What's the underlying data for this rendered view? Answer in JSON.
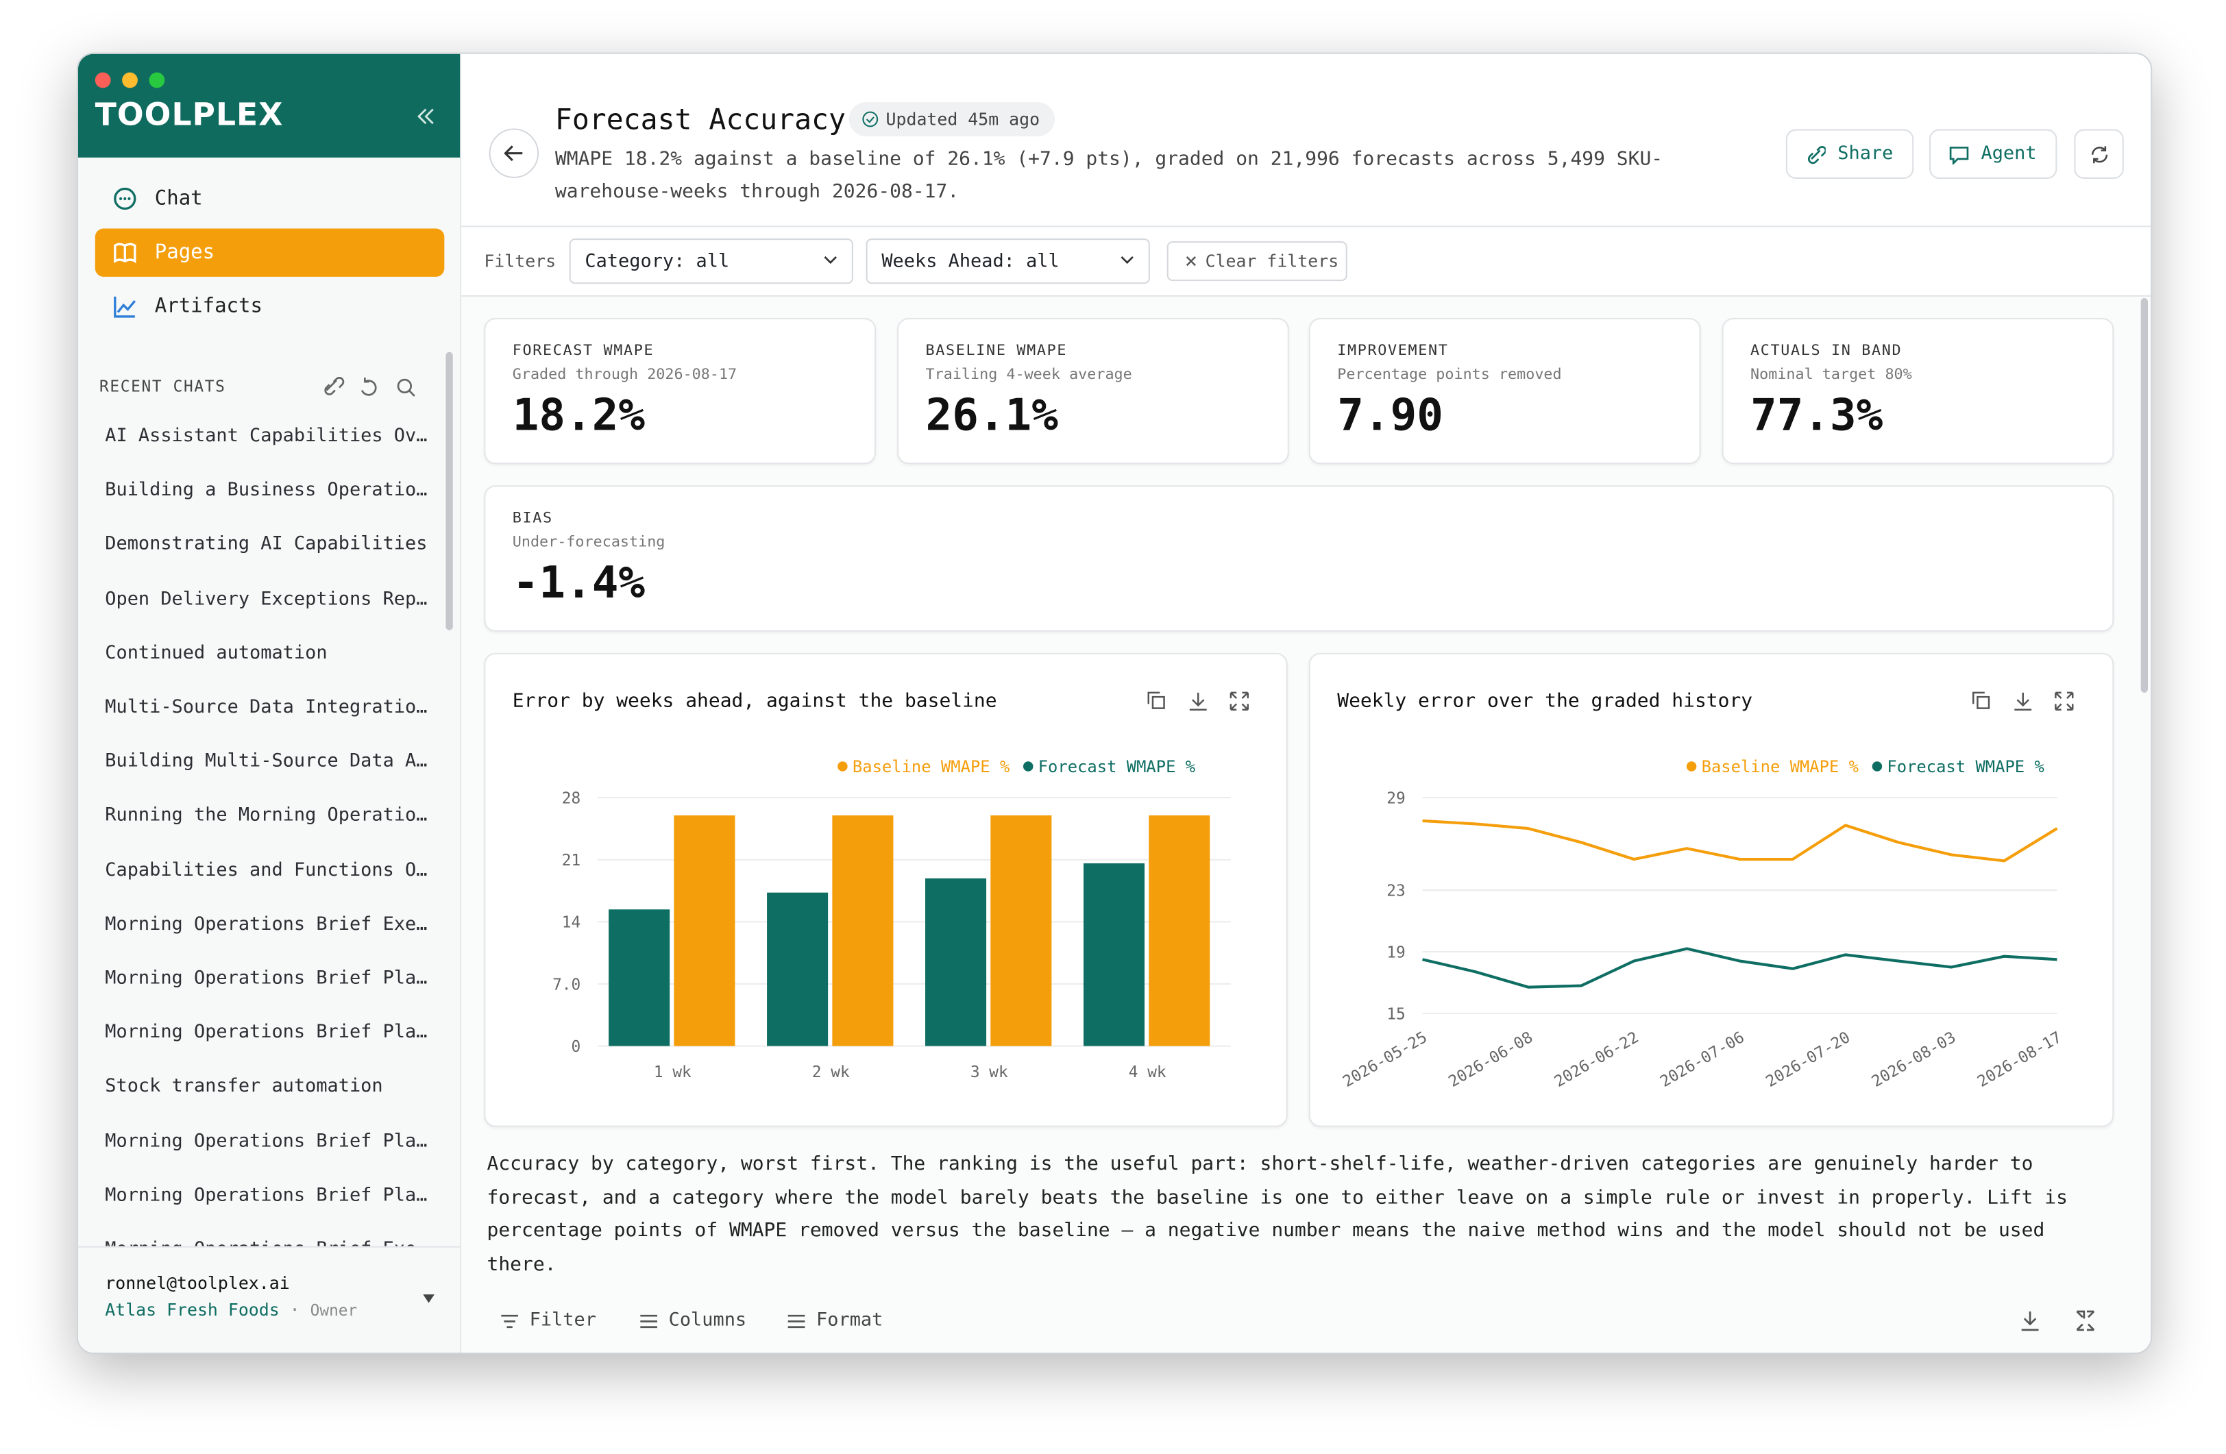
{
  "app": {
    "brand": "TOOLPLEX"
  },
  "nav": [
    {
      "label": "Chat"
    },
    {
      "label": "Pages"
    },
    {
      "label": "Artifacts"
    }
  ],
  "recent": {
    "heading": "RECENT CHATS",
    "items": [
      "AI Assistant Capabilities Ov…",
      "Building a Business Operatio…",
      "Demonstrating AI Capabilities",
      "Open Delivery Exceptions Rep…",
      "Continued automation",
      "Multi-Source Data Integratio…",
      "Building Multi-Source Data A…",
      "Running the Morning Operatio…",
      "Capabilities and Functions O…",
      "Morning Operations Brief Exe…",
      "Morning Operations Brief Pla…",
      "Morning Operations Brief Pla…",
      "Stock transfer automation",
      "Morning Operations Brief Pla…",
      "Morning Operations Brief Pla…",
      "Morning Operations Brief Exe…"
    ]
  },
  "user": {
    "email": "ronnel@toolplex.ai",
    "org": "Atlas Fresh Foods",
    "role": "Owner"
  },
  "header": {
    "title": "Forecast Accuracy",
    "badge": "Updated 45m ago",
    "subtitle": "WMAPE 18.2% against a baseline of 26.1% (+7.9 pts), graded on 21,996 forecasts across 5,499 SKU-warehouse-weeks through 2026-08-17.",
    "buttons": [
      "Share",
      "Agent"
    ]
  },
  "filters": {
    "label": "Filters",
    "selects": [
      "Category: all",
      "Weeks Ahead: all"
    ],
    "clear": "Clear filters"
  },
  "kpis": [
    {
      "label": "FORECAST WMAPE",
      "sub": "Graded through 2026-08-17",
      "value": "18.2%"
    },
    {
      "label": "BASELINE WMAPE",
      "sub": "Trailing 4-week average",
      "value": "26.1%"
    },
    {
      "label": "IMPROVEMENT",
      "sub": "Percentage points removed",
      "value": "7.90"
    },
    {
      "label": "ACTUALS IN BAND",
      "sub": "Nominal target 80%",
      "value": "77.3%"
    },
    {
      "label": "BIAS",
      "sub": "Under-forecasting",
      "value": "-1.4%"
    }
  ],
  "chart_data": [
    {
      "type": "bar",
      "title": "Error by weeks ahead, against the baseline",
      "categories": [
        "1 wk",
        "2 wk",
        "3 wk",
        "4 wk"
      ],
      "series": [
        {
          "name": "Forecast WMAPE %",
          "color": "#0f6e63",
          "values": [
            15.4,
            17.3,
            18.9,
            20.6
          ]
        },
        {
          "name": "Baseline WMAPE %",
          "color": "#f59e0b",
          "values": [
            26.0,
            26.0,
            26.0,
            26.0
          ]
        }
      ],
      "ylim": [
        0,
        28
      ],
      "yticks": [
        0,
        {
          "value": 7,
          "label": "7.0"
        },
        14,
        21,
        28
      ],
      "grid": true
    },
    {
      "type": "line",
      "title": "Weekly error over the graded history",
      "x": [
        "2026-05-25",
        "2026-06-01",
        "2026-06-08",
        "2026-06-15",
        "2026-06-22",
        "2026-06-29",
        "2026-07-06",
        "2026-07-13",
        "2026-07-20",
        "2026-07-27",
        "2026-08-03",
        "2026-08-10",
        "2026-08-17"
      ],
      "xticks": [
        "2026-05-25",
        "2026-06-08",
        "2026-06-22",
        "2026-07-06",
        "2026-07-20",
        "2026-08-03",
        "2026-08-17"
      ],
      "series": [
        {
          "name": "Forecast WMAPE %",
          "color": "#0f6e63",
          "values": [
            18.5,
            17.7,
            16.7,
            16.8,
            18.4,
            19.2,
            18.4,
            17.9,
            18.8,
            18.4,
            18.0,
            18.7,
            18.5
          ]
        },
        {
          "name": "Baseline WMAPE %",
          "color": "#f59e0b",
          "values": [
            27.5,
            27.3,
            27.0,
            26.1,
            25.0,
            25.7,
            25.0,
            25.0,
            27.2,
            26.1,
            25.3,
            24.9,
            27.0
          ]
        }
      ],
      "ylim": [
        15,
        29
      ],
      "yticks": [
        15,
        19,
        23,
        29
      ],
      "grid": true
    }
  ],
  "narrative": "Accuracy by category, worst first. The ranking is the useful part: short-shelf-life, weather-driven categories are genuinely harder to forecast, and a category where the model barely beats the baseline is one to either leave on a simple rule or invest in properly. Lift is percentage points of WMAPE removed versus the baseline — a negative number means the naive method wins and the model should not be used there.",
  "table_toolbar": [
    "Filter",
    "Columns",
    "Format"
  ]
}
